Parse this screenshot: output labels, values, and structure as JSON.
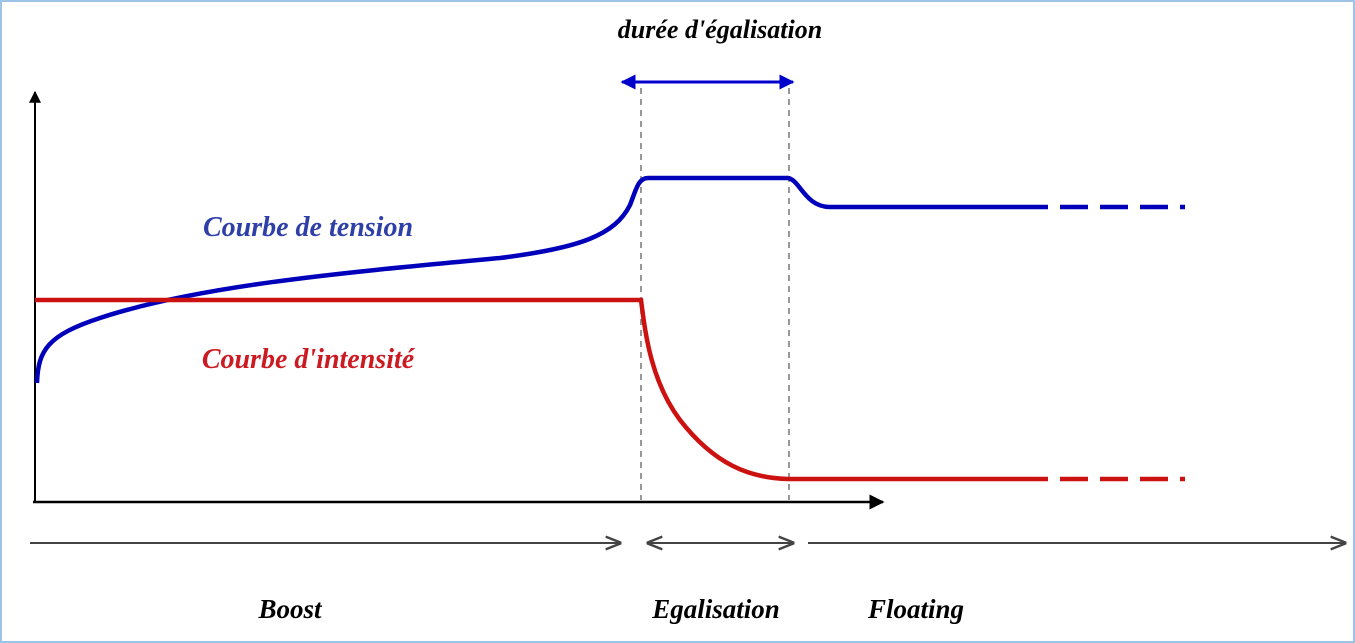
{
  "title": "durée d'égalisation",
  "curves": {
    "voltage": "Courbe de tension",
    "current": "Courbe d'intensité"
  },
  "phases": [
    "Boost",
    "Egalisation",
    "Floating"
  ]
}
